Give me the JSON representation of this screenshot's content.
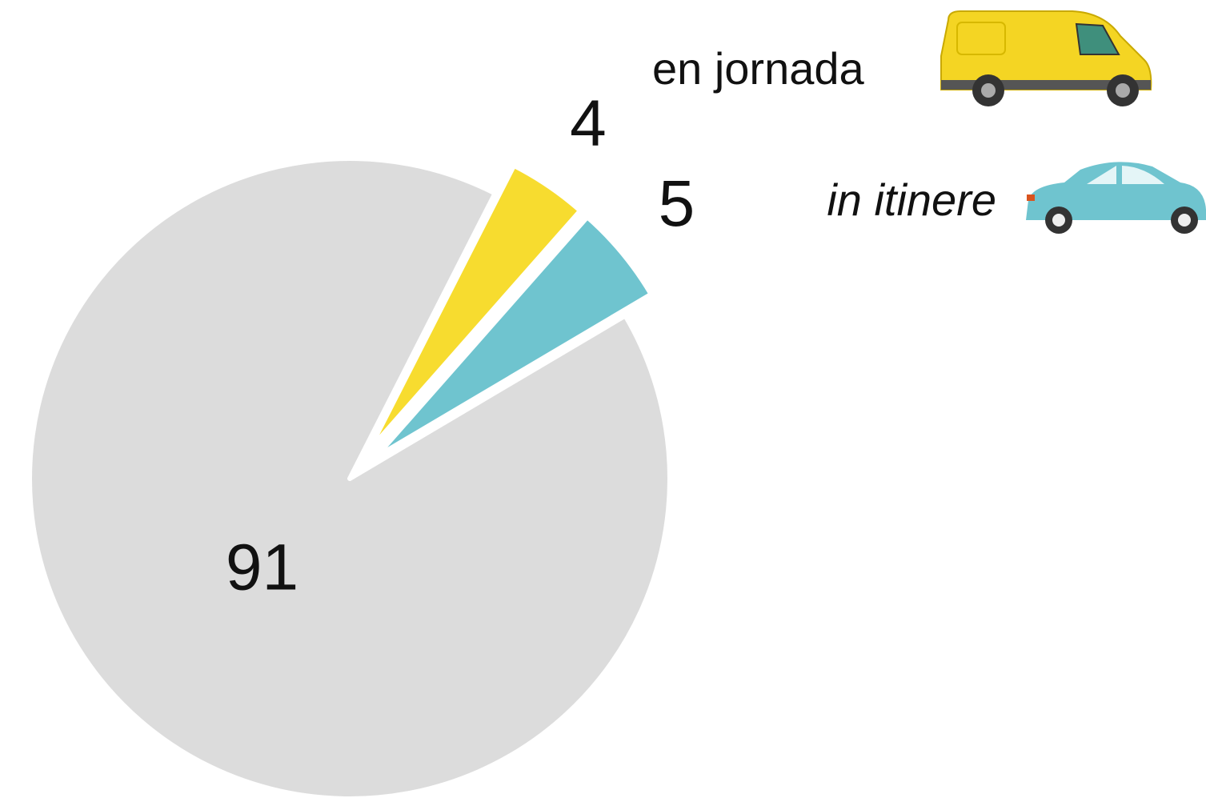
{
  "chart_data": {
    "type": "pie",
    "categories": [
      "en jornada",
      "in itinere",
      null
    ],
    "values": [
      4,
      5,
      91
    ],
    "colors": [
      "#f7dc2f",
      "#6fc4cf",
      "#dcdcdc"
    ]
  }
}
